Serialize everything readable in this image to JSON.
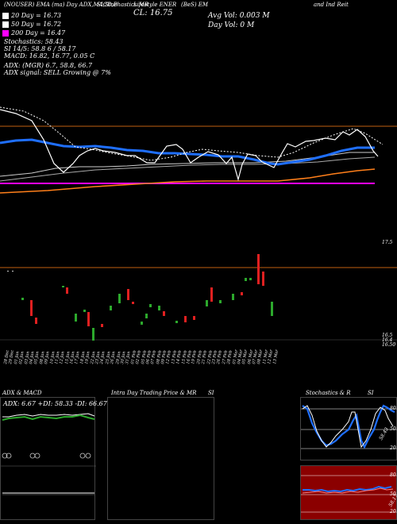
{
  "header": {
    "line1": "(NOUSER)  EMA (ma)  Day ADX,MACD,B",
    "line2": "SI,Stochastics MR",
    "line3": "Lifestyle ENER",
    "line4": "(BeS) EM",
    "line5": "and Ind Reit",
    "cl": "CL: 16.75",
    "avg_vol": "Avg Vol: 0.003  M",
    "day_vol": "Day Vol: 0   M"
  },
  "legend": {
    "ema20": "20  Day  = 16.73",
    "ema50": "50  Day  = 16.72",
    "ema200": "200  Day  = 16.47",
    "stochastics": "Stochastics: 58.43",
    "si": "SI  14/5: 58.8           6  / 58.17",
    "macd": "MACD: 16.82, 16.77, 0.05  C",
    "adx": "ADX:                    (MGR) 6.7, 58.8, 66.7",
    "adx_signal": "ADX  signal: SELL  Growing @ 7%"
  },
  "colors": {
    "ema20": "#ffffff",
    "ema50": "#ffffff",
    "ema200": "#ff00ff",
    "blue": "#1f6fff",
    "orange": "#ff7f1a",
    "candle_up": "#2ca82c",
    "candle_down": "#e02020"
  },
  "price_axis": {
    "top_label": "17.5",
    "low1": "16.5",
    "low2": "16.4",
    "low3": "16.50"
  },
  "dates": [
    "28 Dec",
    "29 Dec",
    "01 Jan",
    "02 Jan",
    "03 Jan",
    "04 Jan",
    "05 Jan",
    "08 Jan",
    "09 Jan",
    "10 Jan",
    "11 Jan",
    "12 Jan",
    "15 Jan",
    "16 Jan",
    "17 Jan",
    "18 Jan",
    "19 Jan",
    "22 Jan",
    "23 Jan",
    "24 Jan",
    "25 Jan",
    "26 Jan",
    "29 Jan",
    "30 Jan",
    "31 Jan",
    "01 Feb",
    "02 Feb",
    "05 Feb",
    "06 Feb",
    "07 Feb",
    "08 Feb",
    "09 Feb",
    "12 Feb",
    "13 Feb",
    "14 Feb",
    "15 Feb",
    "16 Feb",
    "19 Feb",
    "20 Feb",
    "21 Feb",
    "22 Feb",
    "23 Feb",
    "26 Feb",
    "27 Feb",
    "28 Feb",
    "01 Mar",
    "04 Mar",
    "05 Mar",
    "06 Mar",
    "07 Mar",
    "08 Mar",
    "11 Mar",
    "12 Mar",
    "13 Mar"
  ],
  "panels": {
    "adx_title": "ADX  & MACD",
    "adx_readout": "ADX: 6.67  +DI: 58.33  -DI: 66.67",
    "intraday_title": "Intra  Day Trading Price  & MR",
    "intraday_si": "SI",
    "stoch_title": "Stochastics & R",
    "stoch_si": "SI",
    "stoch_labels": [
      "80",
      "50",
      "20"
    ],
    "stoch_value": "58.43",
    "si_labels": [
      "80",
      "50",
      "20"
    ],
    "si_value": "58.17"
  }
}
